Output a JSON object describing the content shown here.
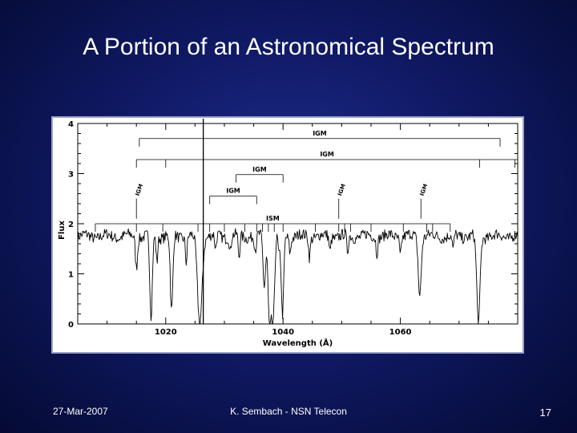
{
  "slide": {
    "title": "A Portion of an Astronomical Spectrum",
    "footer_left": "27-Mar-2007",
    "footer_center": "K. Sembach - NSN Telecon",
    "page_number": "17"
  },
  "chart_data": {
    "type": "line",
    "title": "",
    "xlabel": "Wavelength (Å)",
    "ylabel": "Flux",
    "xlim": [
      1005,
      1080
    ],
    "ylim": [
      0,
      4
    ],
    "x_ticks": [
      1020,
      1040,
      1060
    ],
    "y_ticks": [
      0,
      1,
      2,
      3,
      4
    ],
    "grid": false,
    "continuum": 1.75,
    "absorption_lines": [
      {
        "x": 1015.0,
        "depth": 0.6,
        "width": 0.25
      },
      {
        "x": 1017.5,
        "depth": 1.65,
        "width": 0.3
      },
      {
        "x": 1018.5,
        "depth": 0.5,
        "width": 0.2
      },
      {
        "x": 1021.0,
        "depth": 1.55,
        "width": 0.3
      },
      {
        "x": 1023.5,
        "depth": 0.5,
        "width": 0.2
      },
      {
        "x": 1025.8,
        "depth": 1.75,
        "width": 0.55
      },
      {
        "x": 1028.5,
        "depth": 0.3,
        "width": 0.2
      },
      {
        "x": 1031.0,
        "depth": 0.3,
        "width": 0.2
      },
      {
        "x": 1032.5,
        "depth": 0.45,
        "width": 0.2
      },
      {
        "x": 1035.3,
        "depth": 0.3,
        "width": 0.25
      },
      {
        "x": 1036.8,
        "depth": 1.0,
        "width": 0.3
      },
      {
        "x": 1037.7,
        "depth": 1.7,
        "width": 0.35
      },
      {
        "x": 1038.3,
        "depth": 1.7,
        "width": 0.35
      },
      {
        "x": 1039.3,
        "depth": 0.4,
        "width": 0.2
      },
      {
        "x": 1039.9,
        "depth": 1.6,
        "width": 0.3
      },
      {
        "x": 1041.2,
        "depth": 0.3,
        "width": 0.2
      },
      {
        "x": 1044.5,
        "depth": 0.4,
        "width": 0.2
      },
      {
        "x": 1048.0,
        "depth": 0.3,
        "width": 0.2
      },
      {
        "x": 1051.0,
        "depth": 0.35,
        "width": 0.2
      },
      {
        "x": 1056.0,
        "depth": 0.3,
        "width": 0.2
      },
      {
        "x": 1060.0,
        "depth": 0.35,
        "width": 0.2
      },
      {
        "x": 1063.3,
        "depth": 1.15,
        "width": 0.35
      },
      {
        "x": 1069.0,
        "depth": 0.3,
        "width": 0.2
      },
      {
        "x": 1073.3,
        "depth": 1.75,
        "width": 0.4
      }
    ],
    "emission_spike": {
      "x": 1026.4,
      "flux": 4.0
    },
    "annotations": [
      {
        "label": "IGM",
        "orientation": "horizontal",
        "y": 3.7,
        "x_start": 1015.5,
        "x_end": 1077,
        "ticks": [
          1015.5,
          1077
        ]
      },
      {
        "label": "IGM",
        "orientation": "horizontal",
        "y": 3.28,
        "x_start": 1015,
        "x_end": 1080,
        "ticks": [
          1015,
          1020,
          1073.5,
          1079.5
        ]
      },
      {
        "label": "IGM",
        "orientation": "horizontal",
        "y": 2.98,
        "x_start": 1032,
        "x_end": 1040,
        "ticks": [
          1032,
          1040
        ]
      },
      {
        "label": "IGM",
        "orientation": "horizontal",
        "y": 2.55,
        "x_start": 1027.5,
        "x_end": 1035.5,
        "ticks": [
          1027.5,
          1035.5
        ]
      },
      {
        "label": "ISM",
        "orientation": "horizontal",
        "y": 2.0,
        "x_start": 1008,
        "x_end": 1068.5,
        "ticks": [
          1008,
          1015,
          1019.5,
          1025.5,
          1027.5,
          1030,
          1033.5,
          1035.5,
          1036.5,
          1037.5,
          1038.5,
          1040,
          1045.5,
          1049.5,
          1050.5,
          1051.5,
          1055,
          1060.5,
          1064.5,
          1065.5,
          1068.5
        ]
      },
      {
        "label": "IGM",
        "orientation": "vertical",
        "x": 1015.0,
        "y_from": 2.1,
        "y_to": 2.5
      },
      {
        "label": "IGM",
        "orientation": "vertical",
        "x": 1049.5,
        "y_from": 2.1,
        "y_to": 2.5
      },
      {
        "label": "IGM",
        "orientation": "vertical",
        "x": 1063.5,
        "y_from": 2.1,
        "y_to": 2.5
      }
    ]
  }
}
